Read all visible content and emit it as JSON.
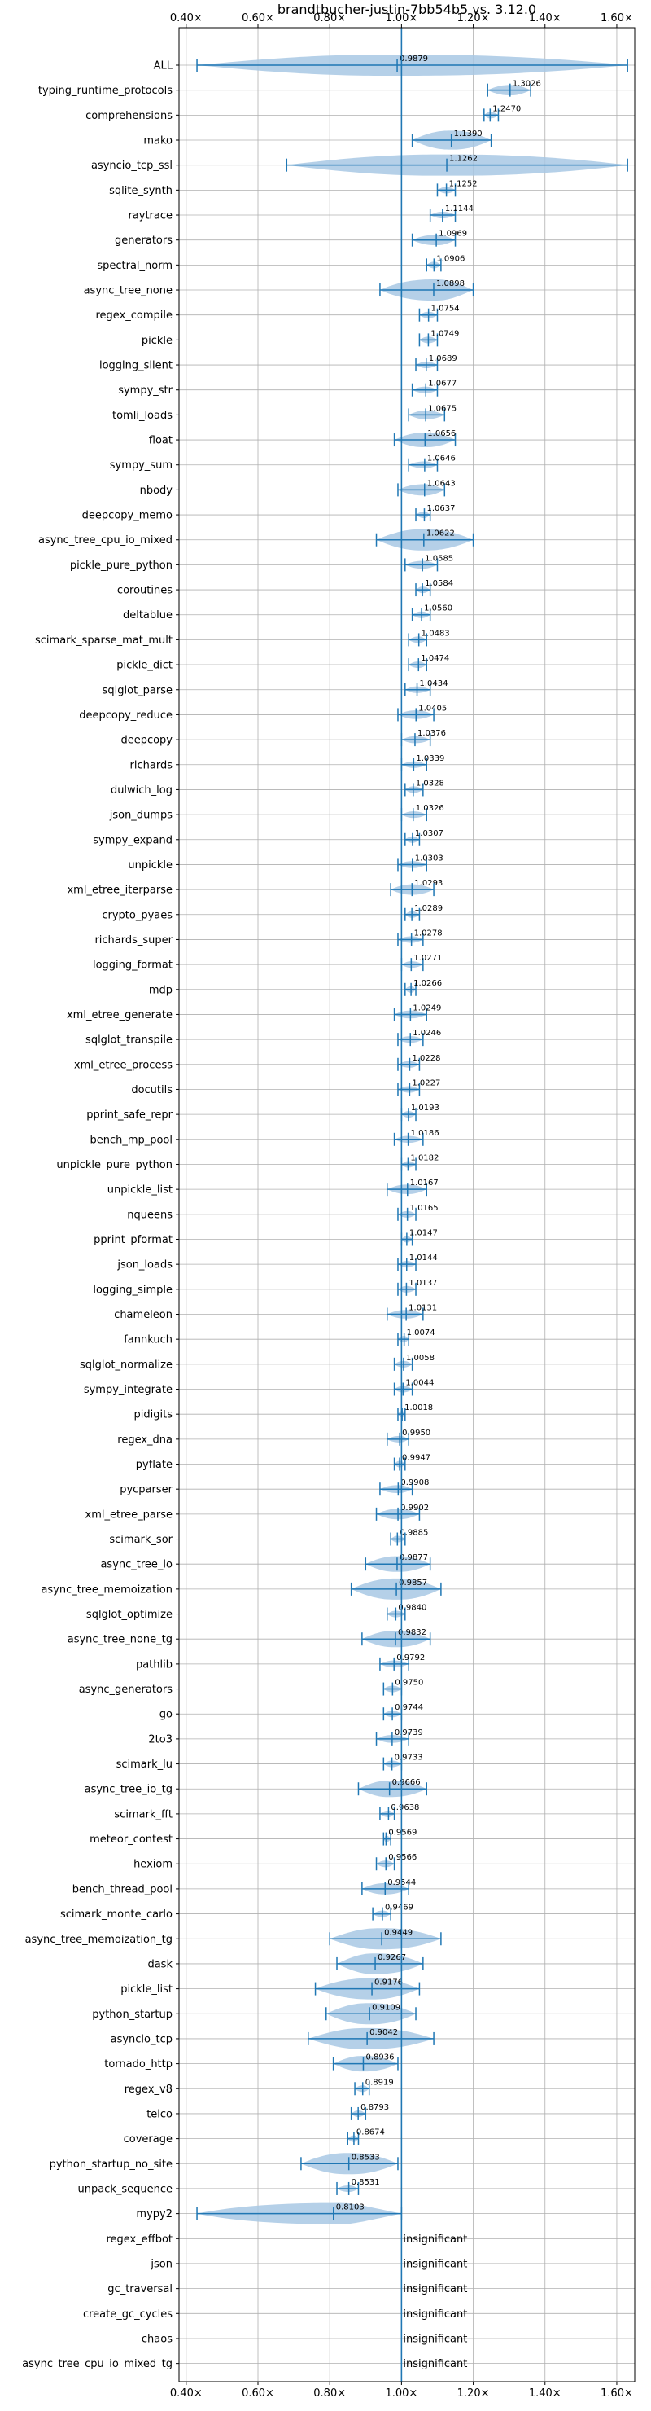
{
  "chart_data": {
    "type": "violin",
    "title": "brandtbucher-justin-7bb54b5 vs. 3.12.0",
    "xlim": [
      0.38,
      1.65
    ],
    "x_ticks": [
      0.4,
      0.6,
      0.8,
      1.0,
      1.2,
      1.4,
      1.6
    ],
    "x_tick_labels": [
      "0.40×",
      "0.60×",
      "0.80×",
      "1.00×",
      "1.20×",
      "1.40×",
      "1.60×"
    ],
    "ticks_top_and_bottom": true,
    "grid": true,
    "reference_line": 1.0,
    "accent_color": "#1f77b4",
    "violin_fill": "#a8c8e4",
    "insignificant_text": "insignificant",
    "rows": [
      {
        "name": "ALL",
        "mean": 0.9879,
        "min": 0.43,
        "max": 1.63,
        "label": "0.9879"
      },
      {
        "name": "typing_runtime_protocols",
        "mean": 1.3026,
        "min": 1.24,
        "max": 1.36,
        "label": "1.3026"
      },
      {
        "name": "comprehensions",
        "mean": 1.247,
        "min": 1.23,
        "max": 1.27,
        "label": "1.2470"
      },
      {
        "name": "mako",
        "mean": 1.139,
        "min": 1.03,
        "max": 1.25,
        "label": "1.1390"
      },
      {
        "name": "asyncio_tcp_ssl",
        "mean": 1.1262,
        "min": 0.68,
        "max": 1.63,
        "label": "1.1262"
      },
      {
        "name": "sqlite_synth",
        "mean": 1.1252,
        "min": 1.1,
        "max": 1.15,
        "label": "1.1252"
      },
      {
        "name": "raytrace",
        "mean": 1.1144,
        "min": 1.08,
        "max": 1.15,
        "label": "1.1144"
      },
      {
        "name": "generators",
        "mean": 1.0969,
        "min": 1.03,
        "max": 1.15,
        "label": "1.0969"
      },
      {
        "name": "spectral_norm",
        "mean": 1.0906,
        "min": 1.07,
        "max": 1.11,
        "label": "1.0906"
      },
      {
        "name": "async_tree_none",
        "mean": 1.0898,
        "min": 0.94,
        "max": 1.2,
        "label": "1.0898"
      },
      {
        "name": "regex_compile",
        "mean": 1.0754,
        "min": 1.05,
        "max": 1.1,
        "label": "1.0754"
      },
      {
        "name": "pickle",
        "mean": 1.0749,
        "min": 1.05,
        "max": 1.1,
        "label": "1.0749"
      },
      {
        "name": "logging_silent",
        "mean": 1.0689,
        "min": 1.04,
        "max": 1.1,
        "label": "1.0689"
      },
      {
        "name": "sympy_str",
        "mean": 1.0677,
        "min": 1.03,
        "max": 1.1,
        "label": "1.0677"
      },
      {
        "name": "tomli_loads",
        "mean": 1.0675,
        "min": 1.02,
        "max": 1.12,
        "label": "1.0675"
      },
      {
        "name": "float",
        "mean": 1.0656,
        "min": 0.98,
        "max": 1.15,
        "label": "1.0656"
      },
      {
        "name": "sympy_sum",
        "mean": 1.0646,
        "min": 1.02,
        "max": 1.1,
        "label": "1.0646"
      },
      {
        "name": "nbody",
        "mean": 1.0643,
        "min": 0.99,
        "max": 1.12,
        "label": "1.0643"
      },
      {
        "name": "deepcopy_memo",
        "mean": 1.0637,
        "min": 1.04,
        "max": 1.08,
        "label": "1.0637"
      },
      {
        "name": "async_tree_cpu_io_mixed",
        "mean": 1.0622,
        "min": 0.93,
        "max": 1.2,
        "label": "1.0622"
      },
      {
        "name": "pickle_pure_python",
        "mean": 1.0585,
        "min": 1.01,
        "max": 1.1,
        "label": "1.0585"
      },
      {
        "name": "coroutines",
        "mean": 1.0584,
        "min": 1.04,
        "max": 1.08,
        "label": "1.0584"
      },
      {
        "name": "deltablue",
        "mean": 1.056,
        "min": 1.03,
        "max": 1.08,
        "label": "1.0560"
      },
      {
        "name": "scimark_sparse_mat_mult",
        "mean": 1.0483,
        "min": 1.02,
        "max": 1.07,
        "label": "1.0483"
      },
      {
        "name": "pickle_dict",
        "mean": 1.0474,
        "min": 1.02,
        "max": 1.07,
        "label": "1.0474"
      },
      {
        "name": "sqlglot_parse",
        "mean": 1.0434,
        "min": 1.01,
        "max": 1.08,
        "label": "1.0434"
      },
      {
        "name": "deepcopy_reduce",
        "mean": 1.0405,
        "min": 0.99,
        "max": 1.09,
        "label": "1.0405"
      },
      {
        "name": "deepcopy",
        "mean": 1.0376,
        "min": 1.0,
        "max": 1.08,
        "label": "1.0376"
      },
      {
        "name": "richards",
        "mean": 1.0339,
        "min": 1.0,
        "max": 1.07,
        "label": "1.0339"
      },
      {
        "name": "dulwich_log",
        "mean": 1.0328,
        "min": 1.01,
        "max": 1.06,
        "label": "1.0328"
      },
      {
        "name": "json_dumps",
        "mean": 1.0326,
        "min": 1.0,
        "max": 1.07,
        "label": "1.0326"
      },
      {
        "name": "sympy_expand",
        "mean": 1.0307,
        "min": 1.01,
        "max": 1.05,
        "label": "1.0307"
      },
      {
        "name": "unpickle",
        "mean": 1.0303,
        "min": 0.99,
        "max": 1.07,
        "label": "1.0303"
      },
      {
        "name": "xml_etree_iterparse",
        "mean": 1.0293,
        "min": 0.97,
        "max": 1.09,
        "label": "1.0293"
      },
      {
        "name": "crypto_pyaes",
        "mean": 1.0289,
        "min": 1.01,
        "max": 1.05,
        "label": "1.0289"
      },
      {
        "name": "richards_super",
        "mean": 1.0278,
        "min": 0.99,
        "max": 1.06,
        "label": "1.0278"
      },
      {
        "name": "logging_format",
        "mean": 1.0271,
        "min": 1.0,
        "max": 1.06,
        "label": "1.0271"
      },
      {
        "name": "mdp",
        "mean": 1.0266,
        "min": 1.01,
        "max": 1.04,
        "label": "1.0266"
      },
      {
        "name": "xml_etree_generate",
        "mean": 1.0249,
        "min": 0.98,
        "max": 1.07,
        "label": "1.0249"
      },
      {
        "name": "sqlglot_transpile",
        "mean": 1.0246,
        "min": 0.99,
        "max": 1.06,
        "label": "1.0246"
      },
      {
        "name": "xml_etree_process",
        "mean": 1.0228,
        "min": 0.99,
        "max": 1.05,
        "label": "1.0228"
      },
      {
        "name": "docutils",
        "mean": 1.0227,
        "min": 0.99,
        "max": 1.05,
        "label": "1.0227"
      },
      {
        "name": "pprint_safe_repr",
        "mean": 1.0193,
        "min": 1.0,
        "max": 1.04,
        "label": "1.0193"
      },
      {
        "name": "bench_mp_pool",
        "mean": 1.0186,
        "min": 0.98,
        "max": 1.06,
        "label": "1.0186"
      },
      {
        "name": "unpickle_pure_python",
        "mean": 1.0182,
        "min": 1.0,
        "max": 1.04,
        "label": "1.0182"
      },
      {
        "name": "unpickle_list",
        "mean": 1.0167,
        "min": 0.96,
        "max": 1.07,
        "label": "1.0167"
      },
      {
        "name": "nqueens",
        "mean": 1.0165,
        "min": 0.99,
        "max": 1.04,
        "label": "1.0165"
      },
      {
        "name": "pprint_pformat",
        "mean": 1.0147,
        "min": 1.0,
        "max": 1.03,
        "label": "1.0147"
      },
      {
        "name": "json_loads",
        "mean": 1.0144,
        "min": 0.99,
        "max": 1.04,
        "label": "1.0144"
      },
      {
        "name": "logging_simple",
        "mean": 1.0137,
        "min": 0.99,
        "max": 1.04,
        "label": "1.0137"
      },
      {
        "name": "chameleon",
        "mean": 1.0131,
        "min": 0.96,
        "max": 1.06,
        "label": "1.0131"
      },
      {
        "name": "fannkuch",
        "mean": 1.0074,
        "min": 0.99,
        "max": 1.02,
        "label": "1.0074"
      },
      {
        "name": "sqlglot_normalize",
        "mean": 1.0058,
        "min": 0.98,
        "max": 1.03,
        "label": "1.0058"
      },
      {
        "name": "sympy_integrate",
        "mean": 1.0044,
        "min": 0.98,
        "max": 1.03,
        "label": "1.0044"
      },
      {
        "name": "pidigits",
        "mean": 1.0018,
        "min": 0.99,
        "max": 1.01,
        "label": "1.0018"
      },
      {
        "name": "regex_dna",
        "mean": 0.995,
        "min": 0.96,
        "max": 1.02,
        "label": "0.9950"
      },
      {
        "name": "pyflate",
        "mean": 0.9947,
        "min": 0.98,
        "max": 1.01,
        "label": "0.9947"
      },
      {
        "name": "pycparser",
        "mean": 0.9908,
        "min": 0.94,
        "max": 1.03,
        "label": "0.9908"
      },
      {
        "name": "xml_etree_parse",
        "mean": 0.9902,
        "min": 0.93,
        "max": 1.05,
        "label": "0.9902"
      },
      {
        "name": "scimark_sor",
        "mean": 0.9885,
        "min": 0.97,
        "max": 1.01,
        "label": "0.9885"
      },
      {
        "name": "async_tree_io",
        "mean": 0.9877,
        "min": 0.9,
        "max": 1.08,
        "label": "0.9877"
      },
      {
        "name": "async_tree_memoization",
        "mean": 0.9857,
        "min": 0.86,
        "max": 1.11,
        "label": "0.9857"
      },
      {
        "name": "sqlglot_optimize",
        "mean": 0.984,
        "min": 0.96,
        "max": 1.01,
        "label": "0.9840"
      },
      {
        "name": "async_tree_none_tg",
        "mean": 0.9832,
        "min": 0.89,
        "max": 1.08,
        "label": "0.9832"
      },
      {
        "name": "pathlib",
        "mean": 0.9792,
        "min": 0.94,
        "max": 1.02,
        "label": "0.9792"
      },
      {
        "name": "async_generators",
        "mean": 0.975,
        "min": 0.95,
        "max": 1.0,
        "label": "0.9750"
      },
      {
        "name": "go",
        "mean": 0.9744,
        "min": 0.95,
        "max": 1.0,
        "label": "0.9744"
      },
      {
        "name": "2to3",
        "mean": 0.9739,
        "min": 0.93,
        "max": 1.02,
        "label": "0.9739"
      },
      {
        "name": "scimark_lu",
        "mean": 0.9733,
        "min": 0.95,
        "max": 1.0,
        "label": "0.9733"
      },
      {
        "name": "async_tree_io_tg",
        "mean": 0.9666,
        "min": 0.88,
        "max": 1.07,
        "label": "0.9666"
      },
      {
        "name": "scimark_fft",
        "mean": 0.9638,
        "min": 0.94,
        "max": 0.98,
        "label": "0.9638"
      },
      {
        "name": "meteor_contest",
        "mean": 0.9569,
        "min": 0.95,
        "max": 0.97,
        "label": "0.9569"
      },
      {
        "name": "hexiom",
        "mean": 0.9566,
        "min": 0.93,
        "max": 0.98,
        "label": "0.9566"
      },
      {
        "name": "bench_thread_pool",
        "mean": 0.9544,
        "min": 0.89,
        "max": 1.02,
        "label": "0.9544"
      },
      {
        "name": "scimark_monte_carlo",
        "mean": 0.9469,
        "min": 0.92,
        "max": 0.97,
        "label": "0.9469"
      },
      {
        "name": "async_tree_memoization_tg",
        "mean": 0.9449,
        "min": 0.8,
        "max": 1.11,
        "label": "0.9449"
      },
      {
        "name": "dask",
        "mean": 0.9267,
        "min": 0.82,
        "max": 1.06,
        "label": "0.9267"
      },
      {
        "name": "pickle_list",
        "mean": 0.9176,
        "min": 0.76,
        "max": 1.05,
        "label": "0.9176"
      },
      {
        "name": "python_startup",
        "mean": 0.9109,
        "min": 0.79,
        "max": 1.04,
        "label": "0.9109"
      },
      {
        "name": "asyncio_tcp",
        "mean": 0.9042,
        "min": 0.74,
        "max": 1.09,
        "label": "0.9042"
      },
      {
        "name": "tornado_http",
        "mean": 0.8936,
        "min": 0.81,
        "max": 0.99,
        "label": "0.8936"
      },
      {
        "name": "regex_v8",
        "mean": 0.8919,
        "min": 0.87,
        "max": 0.91,
        "label": "0.8919"
      },
      {
        "name": "telco",
        "mean": 0.8793,
        "min": 0.86,
        "max": 0.9,
        "label": "0.8793"
      },
      {
        "name": "coverage",
        "mean": 0.8674,
        "min": 0.85,
        "max": 0.88,
        "label": "0.8674"
      },
      {
        "name": "python_startup_no_site",
        "mean": 0.8533,
        "min": 0.72,
        "max": 0.99,
        "label": "0.8533"
      },
      {
        "name": "unpack_sequence",
        "mean": 0.8531,
        "min": 0.82,
        "max": 0.88,
        "label": "0.8531"
      },
      {
        "name": "mypy2",
        "mean": 0.8103,
        "min": 0.43,
        "max": 1.0,
        "label": "0.8103"
      },
      {
        "name": "regex_effbot",
        "insignificant": true
      },
      {
        "name": "json",
        "insignificant": true
      },
      {
        "name": "gc_traversal",
        "insignificant": true
      },
      {
        "name": "create_gc_cycles",
        "insignificant": true
      },
      {
        "name": "chaos",
        "insignificant": true
      },
      {
        "name": "async_tree_cpu_io_mixed_tg",
        "insignificant": true
      }
    ]
  }
}
